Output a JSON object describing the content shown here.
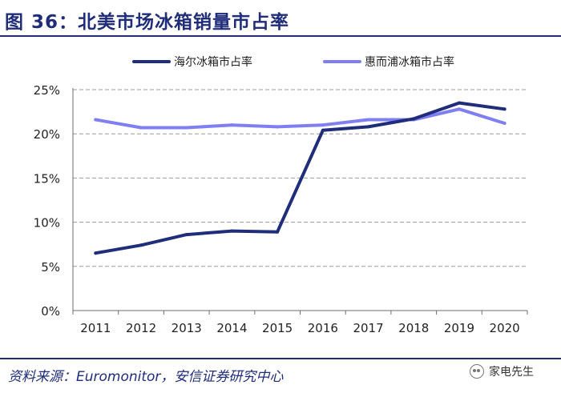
{
  "header": {
    "title": "图 36：北美市场冰箱销量市占率"
  },
  "footer": {
    "source": "资料来源：Euromonitor，安信证券研究中心",
    "watermark": "家电先生"
  },
  "chart_data": {
    "type": "line",
    "title": "图 36：北美市场冰箱销量市占率",
    "x": [
      "2011",
      "2012",
      "2013",
      "2014",
      "2015",
      "2016",
      "2017",
      "2018",
      "2019",
      "2020"
    ],
    "series": [
      {
        "name": "海尔冰箱市占率",
        "color": "#1f2d7a",
        "values": [
          6.5,
          7.4,
          8.6,
          9.0,
          8.9,
          20.4,
          20.8,
          21.7,
          23.5,
          22.8
        ]
      },
      {
        "name": "惠而浦冰箱市占率",
        "color": "#7f7ff2",
        "values": [
          21.6,
          20.7,
          20.7,
          21.0,
          20.8,
          21.0,
          21.6,
          21.6,
          22.8,
          21.2
        ]
      }
    ],
    "yticks": [
      "0%",
      "5%",
      "10%",
      "15%",
      "20%",
      "25%"
    ],
    "ylim": [
      0,
      25
    ],
    "xlabel": "",
    "ylabel": "",
    "grid": true,
    "legend": "top"
  }
}
